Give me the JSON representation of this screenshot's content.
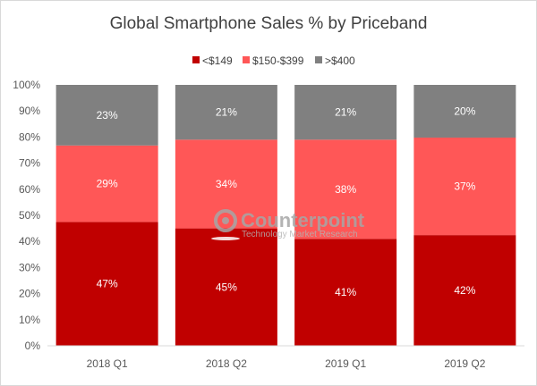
{
  "chart_data": {
    "type": "bar",
    "stacked": true,
    "title": "Global Smartphone Sales % by Priceband",
    "categories": [
      "2018 Q1",
      "2018 Q2",
      "2019 Q1",
      "2019 Q2"
    ],
    "series": [
      {
        "name": "<$149",
        "color": "#c00000",
        "label_color": "#ffffff",
        "values": [
          47,
          45,
          41,
          42
        ]
      },
      {
        "name": "$150-$399",
        "color": "#ff5757",
        "label_color": "#ffffff",
        "values": [
          29,
          34,
          38,
          37
        ]
      },
      {
        "name": ">$400",
        "color": "#808080",
        "label_color": "#ffffff",
        "values": [
          23,
          21,
          21,
          20
        ]
      }
    ],
    "data_labels": [
      [
        "47%",
        "45%",
        "41%",
        "42%"
      ],
      [
        "29%",
        "34%",
        "38%",
        "37%"
      ],
      [
        "23%",
        "21%",
        "21%",
        "20%"
      ]
    ],
    "y_ticks": [
      "0%",
      "10%",
      "20%",
      "30%",
      "40%",
      "50%",
      "60%",
      "70%",
      "80%",
      "90%",
      "100%"
    ],
    "ylim": [
      0,
      100
    ],
    "legend_position": "top-center",
    "grid": false,
    "xlabel": "",
    "ylabel": ""
  },
  "watermark": {
    "brand": "Counterpoint",
    "tagline": "Technology Market Research"
  }
}
